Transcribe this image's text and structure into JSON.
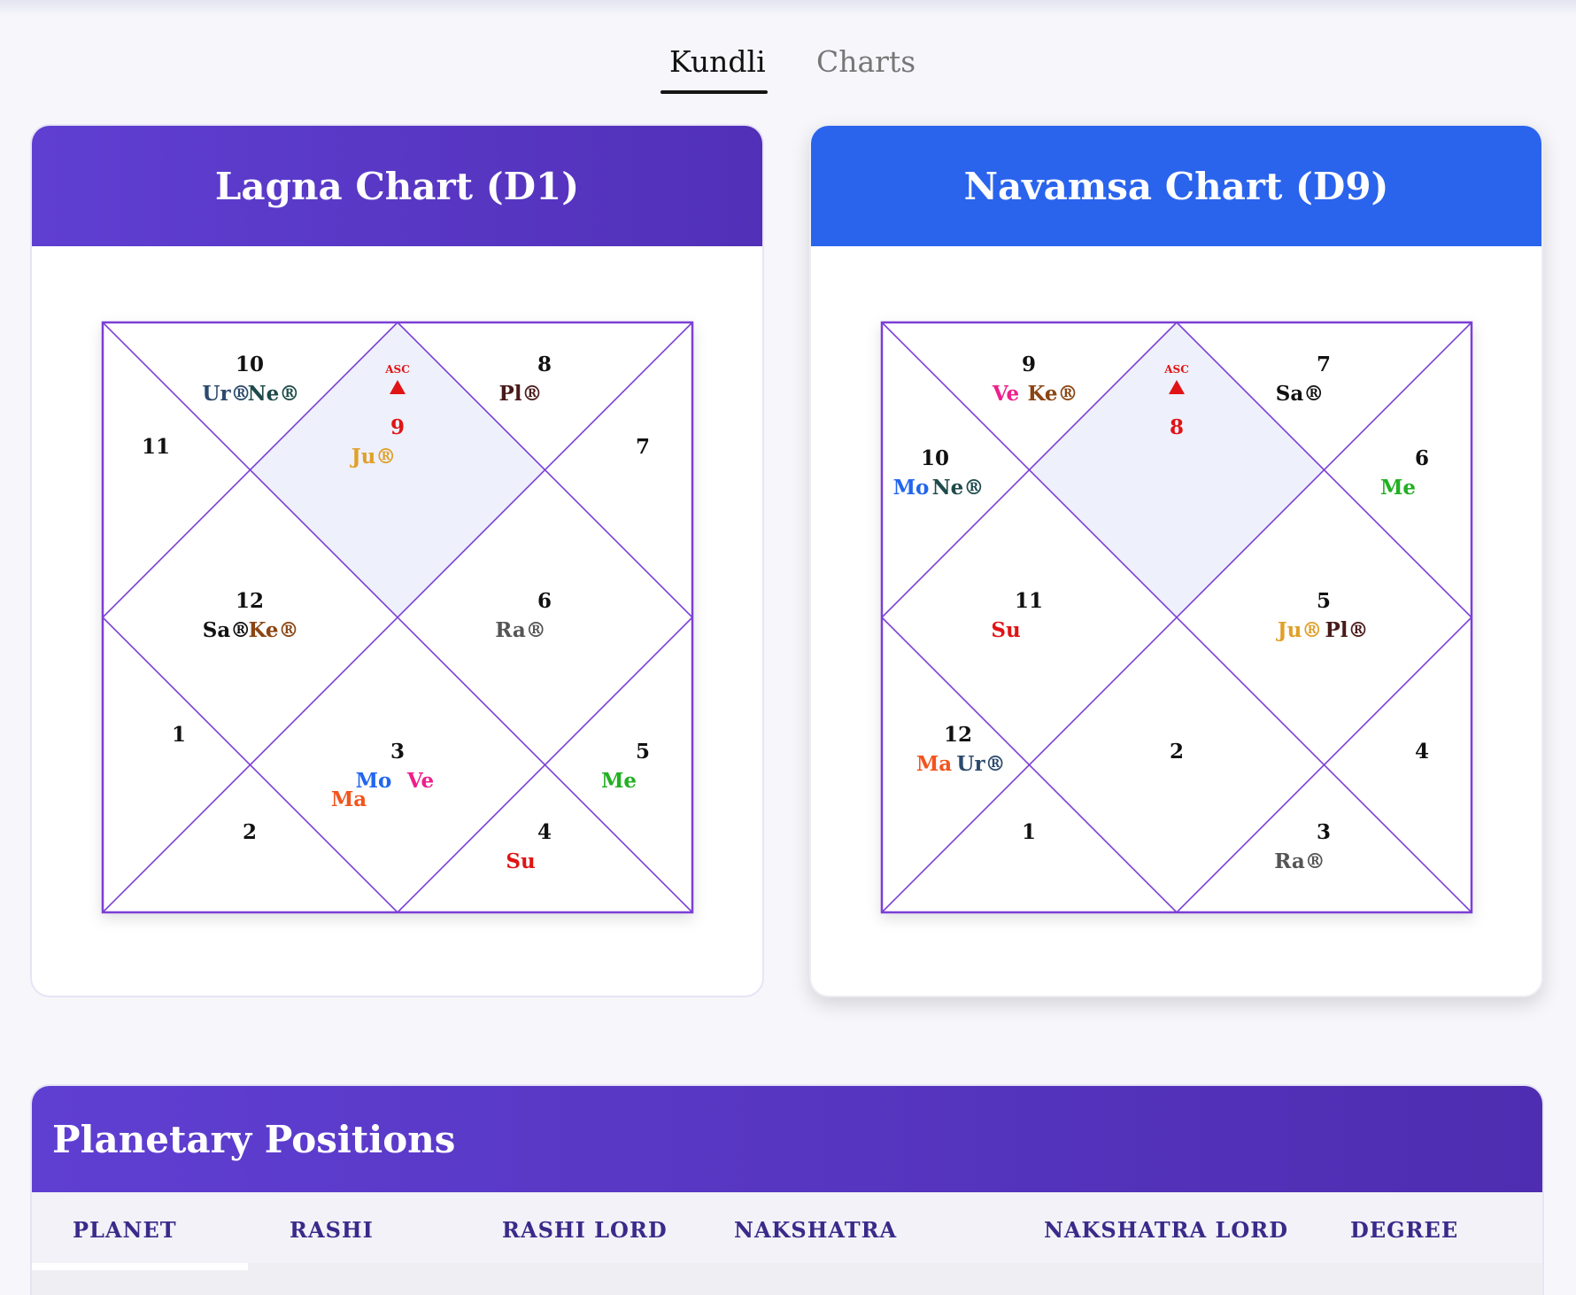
{
  "tabs": [
    {
      "label": "Kundli",
      "active": true
    },
    {
      "label": "Charts",
      "active": false
    }
  ],
  "colors": {
    "lagna_header": "#5a38c9",
    "navamsa_header": "#2a64ec",
    "chart_line": "#7b3fd6",
    "asc_fill": "#eef0fb",
    "asc_red": "#e01414"
  },
  "lagna": {
    "title": "Lagna Chart (D1)",
    "asc_label": "ASC",
    "asc_marker_icon": "triangle-up-icon",
    "houses": [
      "9",
      "10",
      "11",
      "12",
      "1",
      "2",
      "3",
      "4",
      "5",
      "6",
      "7",
      "8"
    ],
    "planets": [
      {
        "text": "Ju®",
        "color": "#e0a02a"
      },
      {
        "text": "Ur®",
        "color": "#2c4a6e"
      },
      {
        "text": "Ne®",
        "color": "#1e4a4a"
      },
      {
        "text": "Sa®",
        "color": "#111111"
      },
      {
        "text": "Ke®",
        "color": "#8b4513"
      },
      {
        "text": "Mo",
        "color": "#2266ee"
      },
      {
        "text": "Ve",
        "color": "#ee1f8c"
      },
      {
        "text": "Ma",
        "color": "#f2551e"
      },
      {
        "text": "Su",
        "color": "#e01414"
      },
      {
        "text": "Me",
        "color": "#22b022"
      },
      {
        "text": "Ra®",
        "color": "#555555"
      },
      {
        "text": "Pl®",
        "color": "#4a1a1a"
      }
    ]
  },
  "navamsa": {
    "title": "Navamsa Chart (D9)",
    "asc_label": "ASC",
    "asc_marker_icon": "triangle-up-icon",
    "houses": [
      "8",
      "9",
      "10",
      "11",
      "12",
      "1",
      "2",
      "3",
      "4",
      "5",
      "6",
      "7"
    ],
    "planets": [
      {
        "text": "Ve",
        "color": "#ee1f8c"
      },
      {
        "text": "Ke®",
        "color": "#8b4513"
      },
      {
        "text": "Mo",
        "color": "#2266ee"
      },
      {
        "text": "Ne®",
        "color": "#1e4a4a"
      },
      {
        "text": "Su",
        "color": "#e01414"
      },
      {
        "text": "Ma",
        "color": "#f2551e"
      },
      {
        "text": "Ur®",
        "color": "#2c4a6e"
      },
      {
        "text": "Ra®",
        "color": "#555555"
      },
      {
        "text": "Ju®",
        "color": "#e0a02a"
      },
      {
        "text": "Pl®",
        "color": "#4a1a1a"
      },
      {
        "text": "Me",
        "color": "#22b022"
      },
      {
        "text": "Sa®",
        "color": "#111111"
      }
    ]
  },
  "positions": {
    "title": "Planetary Positions",
    "columns": [
      "PLANET",
      "RASHI",
      "RASHI LORD",
      "NAKSHATRA",
      "NAKSHATRA LORD",
      "DEGREE"
    ]
  }
}
